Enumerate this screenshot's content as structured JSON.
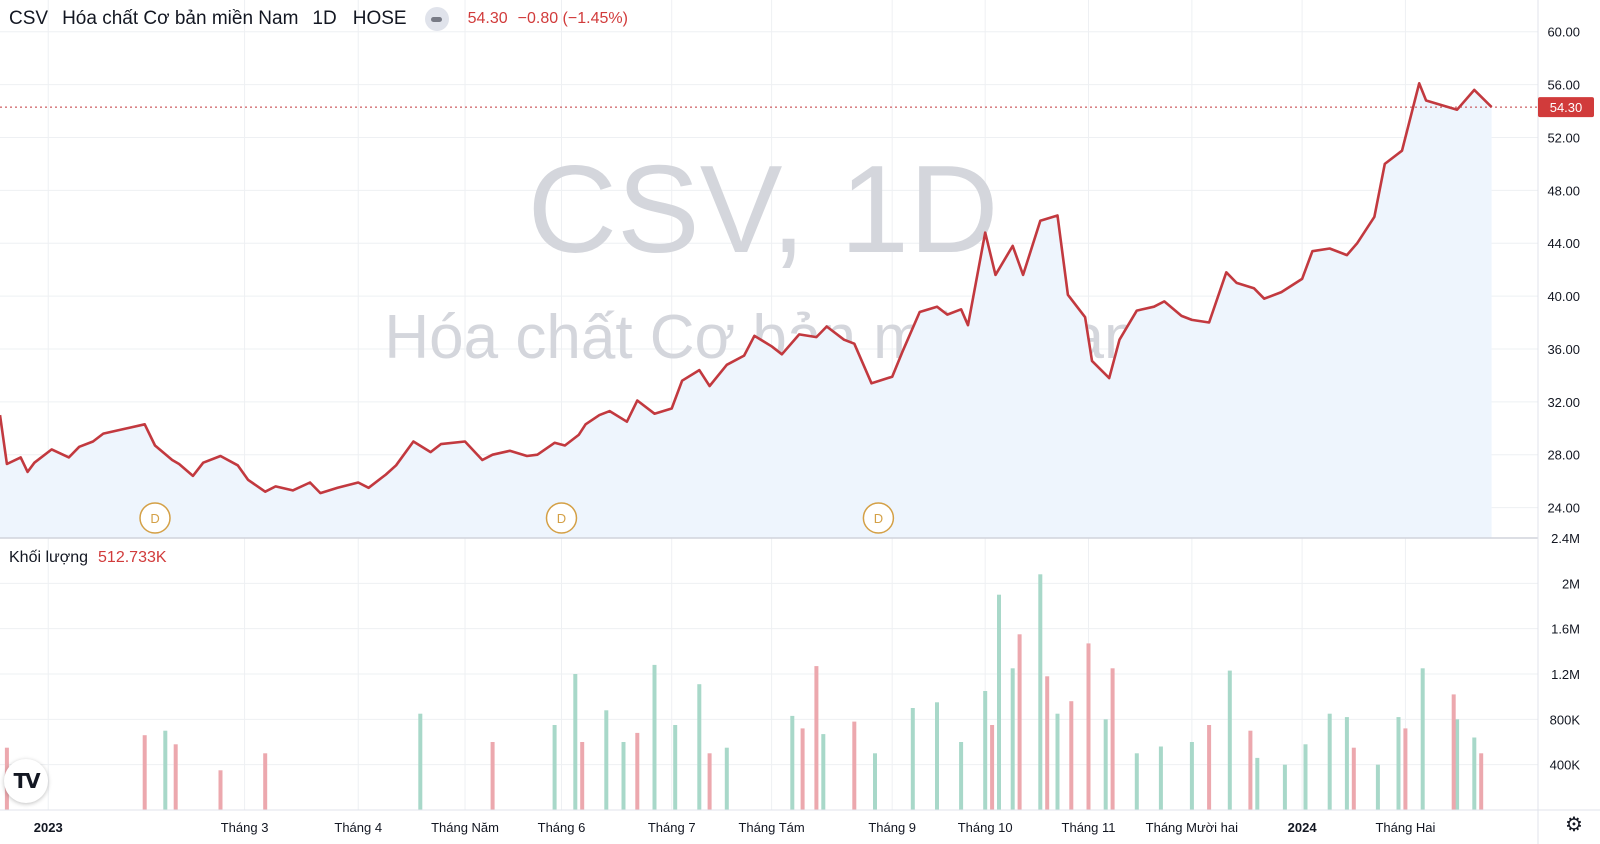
{
  "header": {
    "symbol": "CSV",
    "name": "Hóa chất Cơ bản miền Nam",
    "interval": "1D",
    "exchange": "HOSE",
    "last_price": "54.30",
    "change": "−0.80 (−1.45%)"
  },
  "watermark": {
    "line1": "CSV, 1D",
    "line2": "Hóa chất Cơ bản miền Nam"
  },
  "volume_panel": {
    "label": "Khối lượng",
    "value": "512.733K"
  },
  "price_tag": "54.30",
  "dividend_marker_label": "D",
  "icons": {
    "logo": "tradingview-logo-icon",
    "settings": "gear-icon"
  },
  "colors": {
    "price_line": "#c2393f",
    "area_fill": "#eef5fd",
    "volume_up": "#a8d8c9",
    "volume_down": "#eca8ae",
    "dividend": "#d4a046",
    "price_text": "#d13b3b",
    "grid": "#eef0f3"
  },
  "chart_data": [
    {
      "type": "line",
      "title": "CSV, 1D",
      "subtitle": "Hóa chất Cơ bản miền Nam",
      "ylim": [
        21.7,
        62.4
      ],
      "y_ticks": [
        "60.00",
        "56.00",
        "52.00",
        "48.00",
        "44.00",
        "40.00",
        "36.00",
        "32.00",
        "28.00",
        "24.00"
      ],
      "x_ticks": [
        "2023",
        "Tháng 3",
        "Tháng 4",
        "Tháng Năm",
        "Tháng 6",
        "Tháng 7",
        "Tháng Tám",
        "Tháng 9",
        "Tháng 10",
        "Tháng 11",
        "Tháng Mười hai",
        "2024",
        "Tháng Hai"
      ],
      "x_tick_dates": [
        "2023-01-03",
        "2023-03-01",
        "2023-04-03",
        "2023-05-04",
        "2023-06-01",
        "2023-07-03",
        "2023-08-01",
        "2023-09-05",
        "2023-10-02",
        "2023-11-01",
        "2023-12-01",
        "2024-01-02",
        "2024-02-01"
      ],
      "x_range": [
        "2022-12-20",
        "2024-02-27"
      ],
      "grid": true,
      "area": true,
      "last_value": 54.3,
      "x": [
        "2022-12-20",
        "2022-12-22",
        "2022-12-26",
        "2022-12-28",
        "2022-12-30",
        "2023-01-04",
        "2023-01-09",
        "2023-01-12",
        "2023-01-16",
        "2023-01-19",
        "2023-01-31",
        "2023-02-03",
        "2023-02-08",
        "2023-02-10",
        "2023-02-14",
        "2023-02-17",
        "2023-02-22",
        "2023-02-27",
        "2023-03-02",
        "2023-03-07",
        "2023-03-10",
        "2023-03-15",
        "2023-03-20",
        "2023-03-23",
        "2023-03-28",
        "2023-04-03",
        "2023-04-06",
        "2023-04-11",
        "2023-04-14",
        "2023-04-19",
        "2023-04-24",
        "2023-04-27",
        "2023-05-04",
        "2023-05-09",
        "2023-05-12",
        "2023-05-17",
        "2023-05-22",
        "2023-05-25",
        "2023-05-30",
        "2023-06-02",
        "2023-06-06",
        "2023-06-08",
        "2023-06-12",
        "2023-06-15",
        "2023-06-20",
        "2023-06-23",
        "2023-06-28",
        "2023-07-03",
        "2023-07-06",
        "2023-07-11",
        "2023-07-14",
        "2023-07-19",
        "2023-07-24",
        "2023-07-27",
        "2023-08-01",
        "2023-08-04",
        "2023-08-09",
        "2023-08-14",
        "2023-08-17",
        "2023-08-22",
        "2023-08-25",
        "2023-08-30",
        "2023-09-05",
        "2023-09-08",
        "2023-09-13",
        "2023-09-18",
        "2023-09-21",
        "2023-09-25",
        "2023-09-27",
        "2023-10-02",
        "2023-10-05",
        "2023-10-10",
        "2023-10-13",
        "2023-10-18",
        "2023-10-23",
        "2023-10-26",
        "2023-10-31",
        "2023-11-02",
        "2023-11-07",
        "2023-11-10",
        "2023-11-15",
        "2023-11-20",
        "2023-11-23",
        "2023-11-28",
        "2023-12-01",
        "2023-12-06",
        "2023-12-11",
        "2023-12-14",
        "2023-12-19",
        "2023-12-22",
        "2023-12-27",
        "2024-01-02",
        "2024-01-05",
        "2024-01-10",
        "2024-01-15",
        "2024-01-18",
        "2024-01-23",
        "2024-01-26",
        "2024-01-31",
        "2024-02-05",
        "2024-02-07",
        "2024-02-16",
        "2024-02-21",
        "2024-02-26"
      ],
      "values": [
        31.0,
        27.3,
        27.8,
        26.7,
        27.4,
        28.4,
        27.8,
        28.6,
        29.0,
        29.6,
        30.3,
        28.7,
        27.6,
        27.3,
        26.4,
        27.4,
        27.9,
        27.2,
        26.1,
        25.2,
        25.6,
        25.3,
        25.9,
        25.1,
        25.5,
        25.9,
        25.5,
        26.5,
        27.2,
        29.0,
        28.2,
        28.8,
        29.0,
        27.6,
        28.0,
        28.3,
        27.9,
        28.0,
        28.9,
        28.7,
        29.5,
        30.3,
        31.0,
        31.3,
        30.5,
        32.1,
        31.1,
        31.5,
        33.6,
        34.4,
        33.2,
        34.8,
        35.5,
        37.0,
        36.2,
        35.6,
        37.1,
        36.9,
        37.7,
        36.7,
        36.4,
        33.4,
        33.9,
        35.8,
        38.8,
        39.2,
        38.6,
        39.0,
        37.8,
        44.8,
        41.6,
        43.8,
        41.6,
        45.7,
        46.1,
        40.1,
        38.4,
        35.1,
        33.8,
        36.7,
        38.9,
        39.2,
        39.6,
        38.5,
        38.2,
        38.0,
        41.8,
        41.0,
        40.6,
        39.8,
        40.3,
        41.3,
        43.4,
        43.6,
        43.1,
        44.0,
        46.0,
        50.0,
        51.0,
        56.1,
        54.8,
        54.1,
        55.6,
        54.3
      ],
      "dividends": [
        {
          "date": "2023-02-03",
          "label": "D"
        },
        {
          "date": "2023-06-01",
          "label": "D"
        },
        {
          "date": "2023-09-01",
          "label": "D"
        }
      ]
    },
    {
      "type": "bar",
      "title": "Khối lượng",
      "y_ticks": [
        "2.4M",
        "2M",
        "1.6M",
        "1.2M",
        "800K",
        "400K"
      ],
      "ylim": [
        0,
        2400000
      ],
      "last_value": 512733,
      "grid": true,
      "series": [
        {
          "color_role": "up",
          "dates": [
            "2023-02-06",
            "2023-04-21",
            "2023-05-30",
            "2023-06-05",
            "2023-06-14",
            "2023-06-19",
            "2023-06-28",
            "2023-07-04",
            "2023-07-11",
            "2023-07-19",
            "2023-08-07",
            "2023-08-16",
            "2023-08-31",
            "2023-09-11",
            "2023-09-18",
            "2023-09-25",
            "2023-10-02",
            "2023-10-06",
            "2023-10-10",
            "2023-10-18",
            "2023-10-23",
            "2023-11-06",
            "2023-11-15",
            "2023-11-22",
            "2023-12-01",
            "2023-12-12",
            "2023-12-20",
            "2023-12-28",
            "2024-01-03",
            "2024-01-10",
            "2024-01-15",
            "2024-01-24",
            "2024-01-30",
            "2024-02-06",
            "2024-02-16",
            "2024-02-21"
          ],
          "values": [
            700000,
            850000,
            750000,
            1200000,
            880000,
            600000,
            1280000,
            750000,
            1110000,
            550000,
            830000,
            670000,
            500000,
            900000,
            950000,
            600000,
            1050000,
            1900000,
            1250000,
            2080000,
            850000,
            800000,
            500000,
            560000,
            600000,
            1230000,
            460000,
            400000,
            580000,
            850000,
            820000,
            400000,
            820000,
            1250000,
            800000,
            640000
          ]
        },
        {
          "color_role": "down",
          "dates": [
            "2022-12-22",
            "2023-01-31",
            "2023-02-09",
            "2023-02-22",
            "2023-03-07",
            "2023-05-12",
            "2023-06-07",
            "2023-06-23",
            "2023-07-14",
            "2023-08-10",
            "2023-08-14",
            "2023-08-25",
            "2023-10-04",
            "2023-10-12",
            "2023-10-20",
            "2023-10-27",
            "2023-11-01",
            "2023-11-08",
            "2023-12-06",
            "2023-12-18",
            "2024-01-17",
            "2024-02-01",
            "2024-02-15",
            "2024-02-23"
          ],
          "values": [
            550000,
            660000,
            580000,
            350000,
            500000,
            600000,
            600000,
            680000,
            500000,
            720000,
            1270000,
            780000,
            750000,
            1550000,
            1180000,
            960000,
            1470000,
            1250000,
            750000,
            700000,
            550000,
            720000,
            1020000,
            500000
          ]
        }
      ]
    }
  ]
}
